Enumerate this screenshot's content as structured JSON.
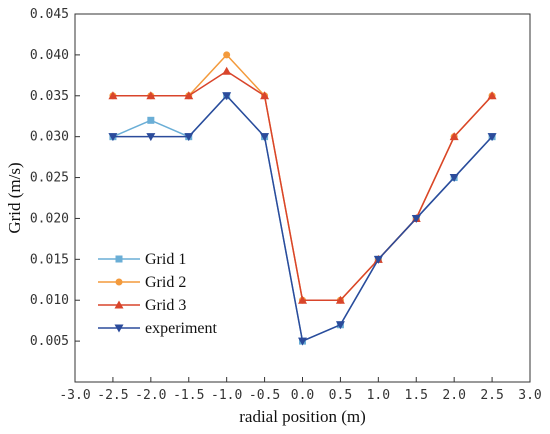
{
  "chart_data": {
    "type": "line",
    "title": "",
    "xlabel": "radial position (m)",
    "ylabel": "Grid (m/s)",
    "xlim": [
      -3.0,
      3.0
    ],
    "ylim": [
      0.0,
      0.045
    ],
    "x_ticks": [
      "-3.0",
      "-2.5",
      "-2.0",
      "-1.5",
      "-1.0",
      "-0.5",
      "0.0",
      "0.5",
      "1.0",
      "1.5",
      "2.0",
      "2.5",
      "3.0"
    ],
    "y_ticks": [
      "0.005",
      "0.010",
      "0.015",
      "0.020",
      "0.025",
      "0.030",
      "0.035",
      "0.040",
      "0.045"
    ],
    "grid": false,
    "legend_position": "bottom-left",
    "x": [
      -2.5,
      -2.0,
      -1.5,
      -1.0,
      -0.5,
      0.0,
      0.5,
      1.0,
      1.5,
      2.0,
      2.5
    ],
    "series": [
      {
        "name": "Grid 1",
        "color": "#6aaed6",
        "marker": "square",
        "values": [
          0.03,
          0.032,
          0.03,
          0.035,
          0.03,
          0.005,
          0.007,
          0.015,
          0.02,
          0.025,
          0.03
        ]
      },
      {
        "name": "Grid 2",
        "color": "#f39a3c",
        "marker": "circle",
        "values": [
          0.035,
          0.035,
          0.035,
          0.04,
          0.035,
          0.01,
          0.01,
          0.015,
          0.02,
          0.03,
          0.035
        ]
      },
      {
        "name": "Grid 3",
        "color": "#d9452b",
        "marker": "triangle-up",
        "values": [
          0.035,
          0.035,
          0.035,
          0.038,
          0.035,
          0.01,
          0.01,
          0.015,
          0.02,
          0.03,
          0.035
        ]
      },
      {
        "name": "experiment",
        "color": "#2b4b9b",
        "marker": "triangle-down",
        "values": [
          0.03,
          0.03,
          0.03,
          0.035,
          0.03,
          0.005,
          0.007,
          0.015,
          0.02,
          0.025,
          0.03
        ]
      }
    ]
  }
}
